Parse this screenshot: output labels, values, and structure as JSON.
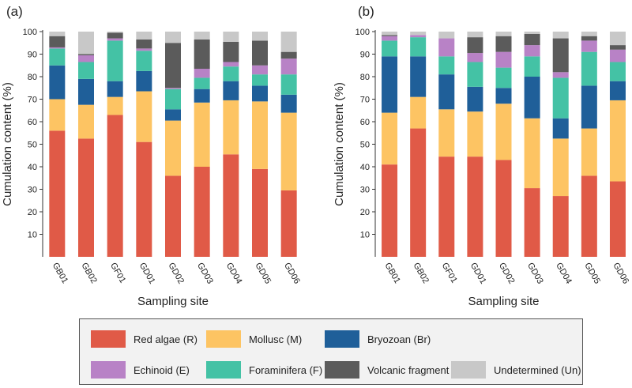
{
  "colors": {
    "R": "#e05a47",
    "M": "#fdc463",
    "Br": "#1f5f99",
    "E": "#b882c6",
    "F": "#44c2a5",
    "Vf": "#5b5b5b",
    "Un": "#c8c8c8"
  },
  "legend": [
    {
      "key": "R",
      "label": "Red algae (R)"
    },
    {
      "key": "M",
      "label": "Mollusc (M)"
    },
    {
      "key": "Br",
      "label": "Bryozoan (Br)"
    },
    {
      "key": "E",
      "label": "Echinoid (E)"
    },
    {
      "key": "F",
      "label": "Foraminifera (F)"
    },
    {
      "key": "Vf",
      "label": "Volcanic fragment (Vf)"
    },
    {
      "key": "Un",
      "label": "Undetermined (Un)"
    }
  ],
  "chart_data": [
    {
      "type": "bar",
      "stacked": true,
      "panel_label": "(a)",
      "xlabel": "Sampling site",
      "ylabel": "Cumulation content (%)",
      "ylim": [
        0,
        100
      ],
      "yticks": [
        10,
        20,
        30,
        40,
        50,
        60,
        70,
        80,
        90,
        100
      ],
      "categories": [
        "GB01",
        "GB02",
        "GF01",
        "GD01",
        "GD02",
        "GD03",
        "GD04",
        "GD05",
        "GD06"
      ],
      "series": [
        {
          "key": "R",
          "name": "Red algae (R)",
          "values": [
            56,
            52.5,
            63,
            51,
            36,
            40,
            45.5,
            39,
            29.5
          ]
        },
        {
          "key": "M",
          "name": "Mollusc (M)",
          "values": [
            14,
            15,
            8,
            22.5,
            24.5,
            28.5,
            24,
            30,
            34.5
          ]
        },
        {
          "key": "Br",
          "name": "Bryozoan (Br)",
          "values": [
            15,
            11.5,
            7,
            9,
            5,
            6,
            8.5,
            7,
            8
          ]
        },
        {
          "key": "F",
          "name": "Foraminifera (F)",
          "values": [
            7.5,
            7.5,
            18,
            9,
            9,
            5,
            6.5,
            5,
            9
          ]
        },
        {
          "key": "E",
          "name": "Echinoid (E)",
          "values": [
            0.5,
            3,
            1,
            1,
            0.5,
            4,
            2,
            4,
            7
          ]
        },
        {
          "key": "Vf",
          "name": "Volcanic fragment (Vf)",
          "values": [
            5,
            0.5,
            2.5,
            4,
            20,
            13,
            9,
            11,
            3
          ]
        },
        {
          "key": "Un",
          "name": "Undetermined (Un)",
          "values": [
            2,
            10,
            0.5,
            3.5,
            5,
            3.5,
            4.5,
            4,
            9
          ]
        }
      ]
    },
    {
      "type": "bar",
      "stacked": true,
      "panel_label": "(b)",
      "xlabel": "Sampling site",
      "ylabel": "Cumulation content (%)",
      "ylim": [
        0,
        100
      ],
      "yticks": [
        10,
        20,
        30,
        40,
        50,
        60,
        70,
        80,
        90,
        100
      ],
      "categories": [
        "GB01",
        "GB02",
        "GF01",
        "GD01",
        "GD02",
        "GD03",
        "GD04",
        "GD05",
        "GD06"
      ],
      "series": [
        {
          "key": "R",
          "name": "Red algae (R)",
          "values": [
            41,
            57,
            44.5,
            44.5,
            43,
            30.5,
            27,
            36,
            33.5
          ]
        },
        {
          "key": "M",
          "name": "Mollusc (M)",
          "values": [
            23,
            14,
            21,
            20,
            25,
            31,
            25.5,
            21,
            36
          ]
        },
        {
          "key": "Br",
          "name": "Bryozoan (Br)",
          "values": [
            25,
            18,
            15.5,
            11,
            7,
            18.5,
            9,
            19,
            8.5
          ]
        },
        {
          "key": "F",
          "name": "Foraminifera (F)",
          "values": [
            7,
            8.5,
            8,
            11,
            9,
            9,
            18,
            15,
            8.5
          ]
        },
        {
          "key": "E",
          "name": "Echinoid (E)",
          "values": [
            2,
            1,
            8,
            4,
            7,
            5,
            2.5,
            5,
            5.5
          ]
        },
        {
          "key": "Vf",
          "name": "Volcanic fragment (Vf)",
          "values": [
            0.5,
            0,
            0,
            7,
            7,
            5,
            15,
            2,
            2
          ]
        },
        {
          "key": "Un",
          "name": "Undetermined (Un)",
          "values": [
            1.5,
            1.5,
            3,
            2.5,
            2,
            1,
            3,
            2,
            6
          ]
        }
      ]
    }
  ]
}
